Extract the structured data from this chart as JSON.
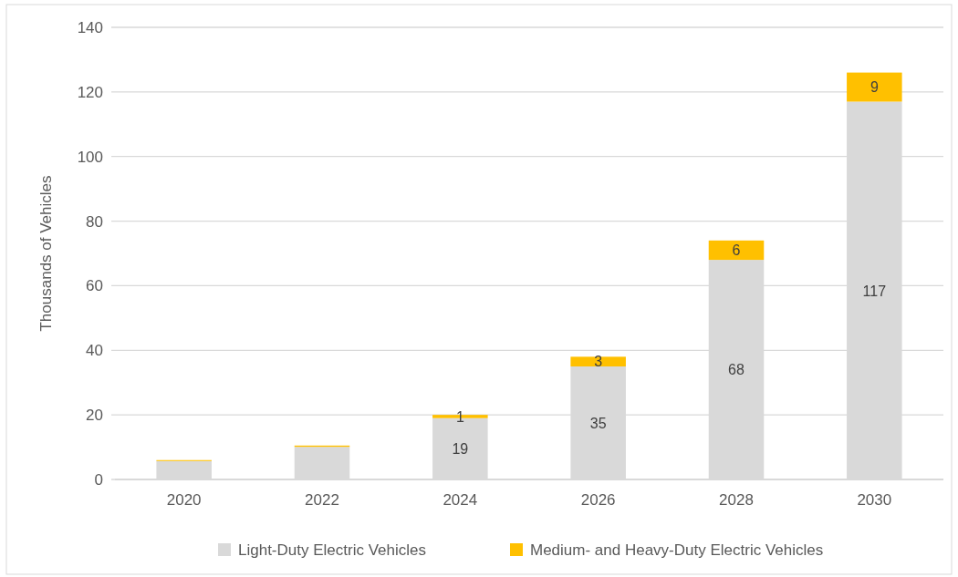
{
  "chart_data": {
    "type": "bar",
    "stacked": true,
    "ylabel": "Thousands of Vehicles",
    "categories": [
      "2020",
      "2022",
      "2024",
      "2026",
      "2028",
      "2030"
    ],
    "series": [
      {
        "name": "Light-Duty Electric Vehicles",
        "color": "#d9d9d9",
        "values": [
          5.7,
          10.1,
          19,
          35,
          68,
          117
        ],
        "value_labels": [
          null,
          null,
          "19",
          "35",
          "68",
          "117"
        ]
      },
      {
        "name": "Medium- and Heavy-Duty Electric Vehicles",
        "color": "#ffc000",
        "values": [
          0.3,
          0.4,
          1,
          3,
          6,
          9
        ],
        "value_labels": [
          null,
          null,
          "1",
          "3",
          "6",
          "9"
        ]
      }
    ],
    "ylim": [
      0,
      140
    ],
    "yticks": [
      0,
      20,
      40,
      60,
      80,
      100,
      120,
      140
    ],
    "grid": true,
    "legend": "bottom"
  }
}
